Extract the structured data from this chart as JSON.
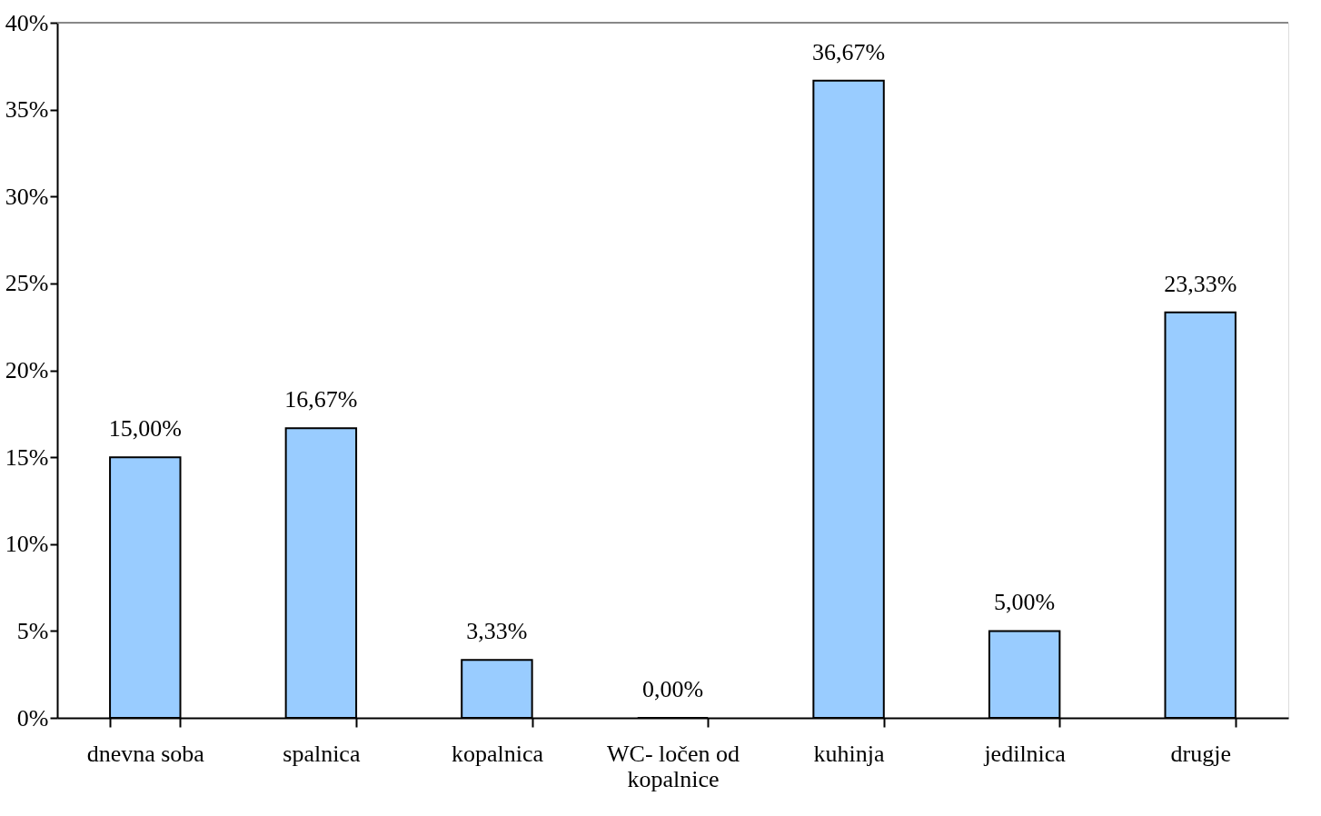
{
  "chart_data": {
    "type": "bar",
    "categories": [
      "dnevna soba",
      "spalnica",
      "kopalnica",
      "WC- ločen od kopalnice",
      "kuhinja",
      "jedilnica",
      "drugje"
    ],
    "values": [
      15.0,
      16.67,
      3.33,
      0.0,
      36.67,
      5.0,
      23.33
    ],
    "value_labels": [
      "15,00%",
      "16,67%",
      "3,33%",
      "0,00%",
      "36,67%",
      "5,00%",
      "23,33%"
    ],
    "color": "#99ccff",
    "ylim": [
      0,
      40
    ],
    "yticks": [
      {
        "value": 0,
        "label": "0%"
      },
      {
        "value": 5,
        "label": "5%"
      },
      {
        "value": 10,
        "label": "10%"
      },
      {
        "value": 15,
        "label": "15%"
      },
      {
        "value": 20,
        "label": "20%"
      },
      {
        "value": 25,
        "label": "25%"
      },
      {
        "value": 30,
        "label": "30%"
      },
      {
        "value": 35,
        "label": "35%"
      },
      {
        "value": 40,
        "label": "40%"
      }
    ],
    "grid": false,
    "legend": false
  }
}
